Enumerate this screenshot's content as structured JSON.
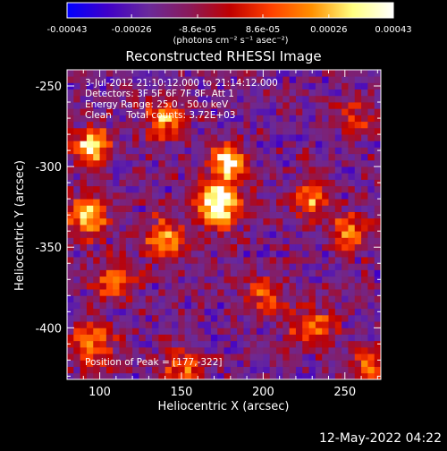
{
  "colorbar": {
    "tick_labels": [
      "-0.00043",
      "-0.00026",
      "-8.6e-05",
      "8.6e-05",
      "0.00026",
      "0.00043"
    ],
    "unit_label": "(photons cm⁻² s⁻¹ asec⁻²)",
    "range": [
      -0.00043,
      0.00043
    ],
    "colormap": [
      "#0000ff",
      "#4000c8",
      "#6a2a9a",
      "#8a1a5a",
      "#c00000",
      "#ff4000",
      "#ff9000",
      "#ffff80",
      "#ffffff"
    ]
  },
  "chart_data": {
    "type": "heatmap",
    "title": "Reconstructed RHESSI Image",
    "xlabel": "Heliocentric X (arcsec)",
    "ylabel": "Heliocentric Y (arcsec)",
    "xlim": [
      80,
      272
    ],
    "ylim": [
      -432,
      -240
    ],
    "x_ticks": [
      100,
      150,
      200,
      250
    ],
    "y_ticks": [
      -250,
      -300,
      -350,
      -400
    ],
    "x_tick_labels": [
      "100",
      "150",
      "200",
      "250"
    ],
    "y_tick_labels": [
      "-250",
      "-300",
      "-350",
      "-400"
    ],
    "pixel_size_arcsec": 4,
    "info_lines": [
      "3-Jul-2012 21:10:12.000 to 21:14:12.000",
      "Detectors: 3F 5F 6F 7F 8F, Att 1",
      "Energy Range: 25.0 - 50.0 keV",
      "Clean     Total counts: 3.72E+03"
    ],
    "peak_label": "Position of Peak = [177,-322]",
    "peak": [
      177,
      -322
    ],
    "bright_sources": [
      {
        "x": 172,
        "y": -322,
        "amp": 1.0,
        "sigma": 10
      },
      {
        "x": 178,
        "y": -296,
        "amp": 0.9,
        "sigma": 7
      },
      {
        "x": 95,
        "y": -288,
        "amp": 0.85,
        "sigma": 8
      },
      {
        "x": 92,
        "y": -330,
        "amp": 0.75,
        "sigma": 9
      },
      {
        "x": 140,
        "y": -270,
        "amp": 0.6,
        "sigma": 8
      },
      {
        "x": 140,
        "y": -345,
        "amp": 0.6,
        "sigma": 9
      },
      {
        "x": 110,
        "y": -370,
        "amp": 0.5,
        "sigma": 9
      },
      {
        "x": 230,
        "y": -320,
        "amp": 0.6,
        "sigma": 8
      },
      {
        "x": 255,
        "y": -340,
        "amp": 0.55,
        "sigma": 8
      },
      {
        "x": 95,
        "y": -410,
        "amp": 0.6,
        "sigma": 9
      },
      {
        "x": 150,
        "y": -425,
        "amp": 0.5,
        "sigma": 8
      },
      {
        "x": 230,
        "y": -400,
        "amp": 0.55,
        "sigma": 9
      },
      {
        "x": 265,
        "y": -425,
        "amp": 0.5,
        "sigma": 7
      },
      {
        "x": 200,
        "y": -380,
        "amp": 0.4,
        "sigma": 8
      },
      {
        "x": 255,
        "y": -270,
        "amp": 0.35,
        "sigma": 8
      }
    ]
  },
  "footer": {
    "timestamp": "12-May-2022 04:22"
  }
}
